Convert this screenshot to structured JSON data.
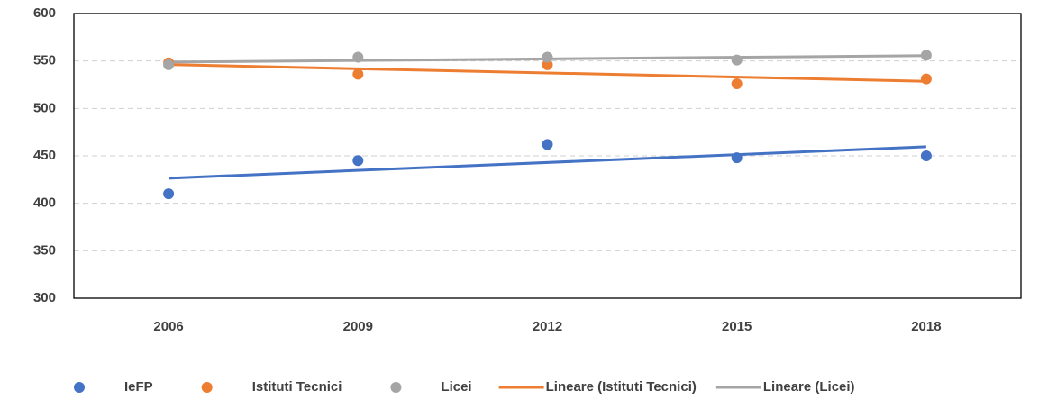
{
  "chart_data": {
    "type": "scatter",
    "categories": [
      "2006",
      "2009",
      "2012",
      "2015",
      "2018"
    ],
    "series": [
      {
        "name": "IeFP",
        "color": "#4472c4",
        "values": [
          410,
          445,
          462,
          448,
          450
        ],
        "trendline": true
      },
      {
        "name": "Istituti Tecnici",
        "color": "#ed7d31",
        "values": [
          548,
          536,
          546,
          526,
          531
        ],
        "trendline": true,
        "trendline_name": "Lineare (Istituti Tecnici)"
      },
      {
        "name": "Licei",
        "color": "#a5a5a5",
        "values": [
          546,
          554,
          554,
          551,
          556
        ],
        "trendline": true,
        "trendline_name": "Lineare (Licei)"
      }
    ],
    "ylim": [
      300,
      600
    ],
    "yticks": [
      300,
      350,
      400,
      450,
      500,
      550,
      600
    ],
    "grid": true,
    "legend": "bottom"
  }
}
